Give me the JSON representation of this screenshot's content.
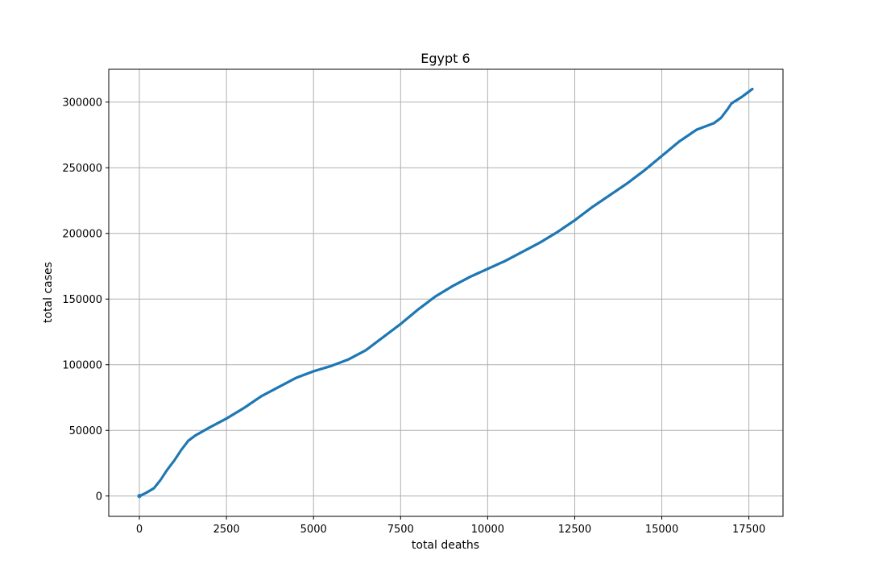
{
  "chart_data": {
    "type": "scatter",
    "title": "Egypt 6",
    "xlabel": "total deaths",
    "ylabel": "total cases",
    "xlim": [
      -880,
      18480
    ],
    "ylim": [
      -15500,
      325000
    ],
    "xticks": [
      0,
      2500,
      5000,
      7500,
      10000,
      12500,
      15000,
      17500
    ],
    "yticks": [
      0,
      50000,
      100000,
      150000,
      200000,
      250000,
      300000
    ],
    "xtick_labels": [
      "0",
      "2500",
      "5000",
      "7500",
      "10000",
      "12500",
      "15000",
      "17500"
    ],
    "ytick_labels": [
      "0",
      "50000",
      "100000",
      "150000",
      "200000",
      "250000",
      "300000"
    ],
    "grid": true,
    "marker_color": "#1f77b4",
    "series": [
      {
        "points": [
          [
            0,
            0
          ],
          [
            200,
            2500
          ],
          [
            420,
            6000
          ],
          [
            600,
            12000
          ],
          [
            800,
            20000
          ],
          [
            1000,
            27000
          ],
          [
            1200,
            35000
          ],
          [
            1400,
            42000
          ],
          [
            1600,
            46000
          ],
          [
            2000,
            52000
          ],
          [
            2500,
            59000
          ],
          [
            3000,
            67000
          ],
          [
            3500,
            76000
          ],
          [
            4000,
            83000
          ],
          [
            4500,
            90000
          ],
          [
            5000,
            95000
          ],
          [
            5500,
            99000
          ],
          [
            6000,
            104000
          ],
          [
            6500,
            111000
          ],
          [
            7000,
            121000
          ],
          [
            7500,
            131000
          ],
          [
            8000,
            142000
          ],
          [
            8500,
            152000
          ],
          [
            9000,
            160000
          ],
          [
            9500,
            167000
          ],
          [
            10000,
            173000
          ],
          [
            10500,
            179000
          ],
          [
            11000,
            186000
          ],
          [
            11500,
            193000
          ],
          [
            12000,
            201000
          ],
          [
            12500,
            210000
          ],
          [
            13000,
            220000
          ],
          [
            13500,
            229000
          ],
          [
            14000,
            238000
          ],
          [
            14500,
            248000
          ],
          [
            15000,
            259000
          ],
          [
            15500,
            270000
          ],
          [
            16000,
            279000
          ],
          [
            16500,
            284000
          ],
          [
            16700,
            288000
          ],
          [
            16900,
            295000
          ],
          [
            17000,
            299000
          ],
          [
            17300,
            304000
          ],
          [
            17600,
            310000
          ]
        ]
      }
    ]
  }
}
